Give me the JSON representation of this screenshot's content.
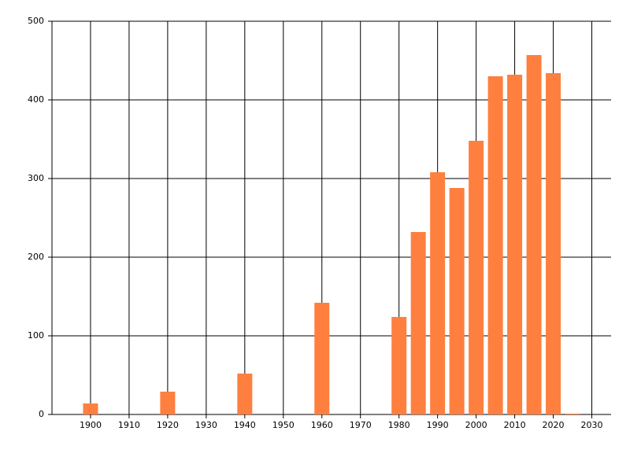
{
  "chart_data": {
    "type": "bar",
    "x": [
      1900,
      1920,
      1940,
      1960,
      1980,
      1985,
      1990,
      1995,
      2000,
      2005,
      2010,
      2015,
      2020,
      2025
    ],
    "values": [
      14,
      29,
      52,
      142,
      124,
      232,
      308,
      288,
      348,
      430,
      432,
      457,
      434,
      1
    ],
    "color": "#ff7f3f",
    "xlim": [
      1890,
      2035
    ],
    "xticks": [
      1900,
      1910,
      1920,
      1930,
      1940,
      1950,
      1960,
      1970,
      1980,
      1990,
      2000,
      2010,
      2020,
      2030
    ],
    "ylim": [
      0,
      500
    ],
    "yticks": [
      0,
      100,
      200,
      300,
      400,
      500
    ],
    "grid": true
  }
}
